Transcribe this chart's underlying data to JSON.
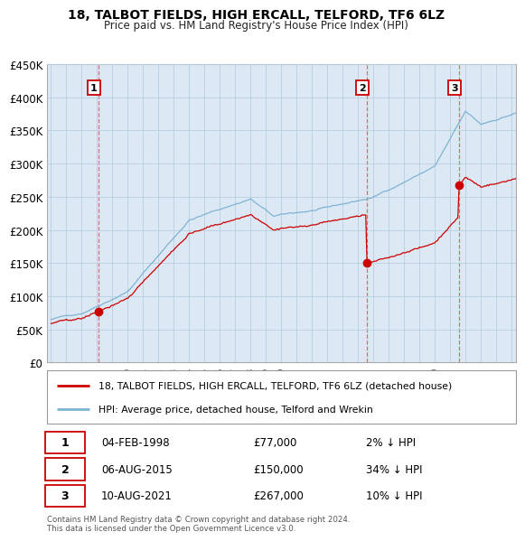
{
  "title": "18, TALBOT FIELDS, HIGH ERCALL, TELFORD, TF6 6LZ",
  "subtitle": "Price paid vs. HM Land Registry's House Price Index (HPI)",
  "legend_line1": "18, TALBOT FIELDS, HIGH ERCALL, TELFORD, TF6 6LZ (detached house)",
  "legend_line2": "HPI: Average price, detached house, Telford and Wrekin",
  "ytick_labels": [
    "£0",
    "£50K",
    "£100K",
    "£150K",
    "£200K",
    "£250K",
    "£300K",
    "£350K",
    "£400K",
    "£450K"
  ],
  "ytick_values": [
    0,
    50000,
    100000,
    150000,
    200000,
    250000,
    300000,
    350000,
    400000,
    450000
  ],
  "ylim": [
    0,
    450000
  ],
  "sale_dates_year": [
    1998.09,
    2015.6,
    2021.6
  ],
  "sale_prices": [
    77000,
    150000,
    267000
  ],
  "sale_labels": [
    "1",
    "2",
    "3"
  ],
  "sale_date_strs": [
    "04-FEB-1998",
    "06-AUG-2015",
    "10-AUG-2021"
  ],
  "sale_price_strs": [
    "£77,000",
    "£150,000",
    "£267,000"
  ],
  "sale_hpi_strs": [
    "2% ↓ HPI",
    "34% ↓ HPI",
    "10% ↓ HPI"
  ],
  "line_color_property": "#cc0000",
  "line_color_hpi": "#7fb3d3",
  "dashed_line_color": "#cc6666",
  "plot_bg_color": "#dce9f5",
  "bg_color": "#ffffff",
  "grid_color": "#b8cfe0",
  "footnote": "Contains HM Land Registry data © Crown copyright and database right 2024.\nThis data is licensed under the Open Government Licence v3.0.",
  "xlim_start": 1994.75,
  "xlim_end": 2025.3
}
